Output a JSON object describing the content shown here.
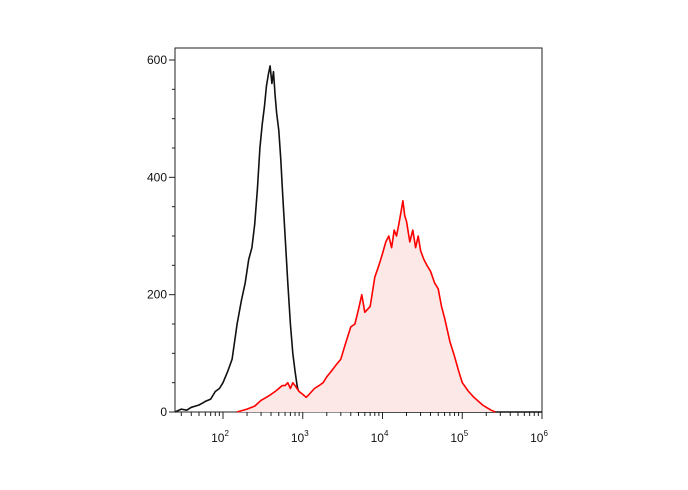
{
  "chart_data": {
    "type": "area",
    "title": "",
    "xlabel": "",
    "ylabel": "",
    "x_scale": "log",
    "xlim": [
      25,
      1000000
    ],
    "ylim": [
      0,
      600
    ],
    "grid": false,
    "y_ticks": [
      {
        "value": 0,
        "label": "0"
      },
      {
        "value": 200,
        "label": "200"
      },
      {
        "value": 400,
        "label": "400"
      },
      {
        "value": 600,
        "label": "600"
      }
    ],
    "x_ticks": [
      {
        "value": 100,
        "base": "10",
        "exp": "2"
      },
      {
        "value": 1000,
        "base": "10",
        "exp": "3"
      },
      {
        "value": 10000,
        "base": "10",
        "exp": "4"
      },
      {
        "value": 100000,
        "base": "10",
        "exp": "5"
      },
      {
        "value": 1000000,
        "base": "10",
        "exp": "6"
      }
    ],
    "series": [
      {
        "color": "#111111",
        "fill": "none",
        "x": [
          25,
          30,
          35,
          40,
          45,
          50,
          55,
          60,
          70,
          80,
          90,
          100,
          115,
          130,
          150,
          170,
          190,
          210,
          230,
          250,
          270,
          290,
          310,
          330,
          350,
          370,
          390,
          410,
          430,
          450,
          470,
          500,
          530,
          560,
          600,
          650,
          700,
          750,
          800,
          850,
          900,
          950,
          1000,
          1100,
          1200,
          1400,
          1600,
          1800,
          2000,
          2500,
          3000,
          3500,
          4000,
          5000,
          6000,
          8000,
          10000,
          20000,
          50000,
          100000,
          1000000
        ],
        "y": [
          0,
          5,
          3,
          8,
          10,
          12,
          15,
          18,
          22,
          35,
          40,
          50,
          70,
          90,
          150,
          190,
          220,
          260,
          280,
          320,
          380,
          450,
          490,
          520,
          555,
          575,
          590,
          560,
          580,
          540,
          510,
          480,
          430,
          370,
          300,
          220,
          150,
          100,
          70,
          45,
          30,
          20,
          12,
          8,
          6,
          5,
          4,
          3,
          3,
          2,
          2,
          1,
          1,
          0,
          0,
          0,
          0,
          0,
          0,
          0,
          0
        ]
      },
      {
        "color": "#ff0000",
        "fill": "#fde8e8",
        "x": [
          150,
          200,
          250,
          300,
          350,
          400,
          450,
          500,
          550,
          600,
          650,
          700,
          750,
          800,
          900,
          1000,
          1100,
          1200,
          1400,
          1600,
          1800,
          2000,
          2300,
          2600,
          3000,
          3500,
          4000,
          4500,
          5000,
          5500,
          6000,
          7000,
          8000,
          9000,
          10000,
          11000,
          12000,
          13000,
          14000,
          15000,
          16000,
          17000,
          18000,
          19000,
          20000,
          22000,
          24000,
          26000,
          28000,
          30000,
          33000,
          36000,
          40000,
          45000,
          50000,
          55000,
          60000,
          70000,
          80000,
          90000,
          100000,
          120000,
          140000,
          160000,
          180000,
          200000,
          230000,
          260000
        ],
        "y": [
          0,
          5,
          10,
          20,
          25,
          30,
          35,
          40,
          45,
          45,
          50,
          40,
          50,
          45,
          35,
          30,
          25,
          30,
          40,
          45,
          50,
          60,
          70,
          80,
          90,
          120,
          145,
          150,
          175,
          200,
          170,
          180,
          230,
          250,
          270,
          290,
          300,
          280,
          310,
          300,
          320,
          340,
          360,
          335,
          325,
          290,
          310,
          280,
          300,
          275,
          260,
          250,
          240,
          220,
          210,
          180,
          160,
          120,
          95,
          70,
          50,
          35,
          25,
          18,
          12,
          8,
          3,
          0
        ]
      }
    ]
  }
}
